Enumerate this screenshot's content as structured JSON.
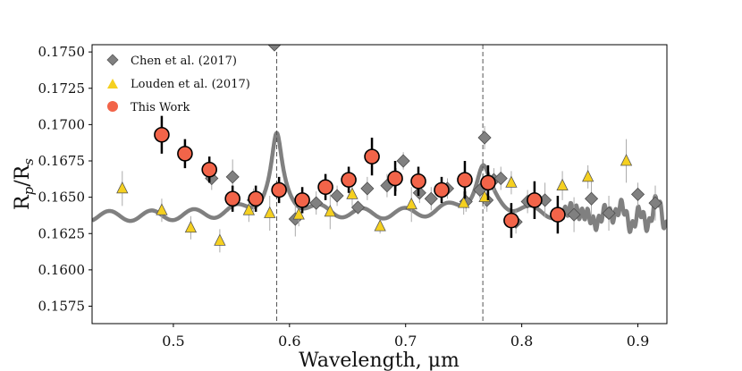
{
  "chart_data": {
    "type": "scatter",
    "xlabel": "Wavelength, μm",
    "ylabel": "Rₚ/Rₛ",
    "ylabel_main": "R",
    "ylabel_sub1": "p",
    "ylabel_mid": "/R",
    "ylabel_sub2": "s",
    "xlim": [
      0.43,
      0.925
    ],
    "ylim": [
      0.1563,
      0.1755
    ],
    "xticks": [
      0.5,
      0.6,
      0.7,
      0.8,
      0.9
    ],
    "xtick_labels": [
      "0.5",
      "0.6",
      "0.7",
      "0.8",
      "0.9"
    ],
    "yticks": [
      0.1575,
      0.16,
      0.1625,
      0.165,
      0.1675,
      0.17,
      0.1725,
      0.175
    ],
    "ytick_labels": [
      "0.1575",
      "0.1600",
      "0.1625",
      "0.1650",
      "0.1675",
      "0.1700",
      "0.1725",
      "0.1750"
    ],
    "vlines": [
      0.589,
      0.7665
    ],
    "legend_position": "top-left",
    "colors": {
      "model": "#808080",
      "chen": "#808080",
      "louden": "#f5d020",
      "this_work": "#f26449"
    },
    "series": [
      {
        "name": "Chen et al. (2017)",
        "marker": "diamond",
        "x": [
          0.533,
          0.551,
          0.569,
          0.587,
          0.605,
          0.623,
          0.641,
          0.659,
          0.667,
          0.684,
          0.692,
          0.698,
          0.712,
          0.722,
          0.736,
          0.752,
          0.764,
          0.768,
          0.77,
          0.776,
          0.782,
          0.795,
          0.805,
          0.82,
          0.845,
          0.86,
          0.875,
          0.9,
          0.915
        ],
        "y": [
          0.1663,
          0.1664,
          0.1648,
          0.1755,
          0.1635,
          0.1646,
          0.1651,
          0.1643,
          0.1656,
          0.1658,
          0.1662,
          0.1675,
          0.1653,
          0.1649,
          0.1656,
          0.1647,
          0.1655,
          0.1691,
          0.1648,
          0.1662,
          0.1663,
          0.1633,
          0.1647,
          0.1648,
          0.1638,
          0.1649,
          0.1639,
          0.1652,
          0.1646
        ],
        "err": [
          0.0008,
          0.0012,
          0.0008,
          0.0002,
          0.0012,
          0.0008,
          0.0007,
          0.0004,
          0.0008,
          0.0008,
          0.0008,
          0.0006,
          0.0007,
          0.0008,
          0.0007,
          0.0007,
          0.0006,
          0.0008,
          0.0008,
          0.0008,
          0.0008,
          0.0008,
          0.0008,
          0.0012,
          0.0012,
          0.0012,
          0.0012,
          0.0008,
          0.0012
        ]
      },
      {
        "name": "Louden et al. (2017)",
        "marker": "triangle",
        "x": [
          0.456,
          0.49,
          0.515,
          0.54,
          0.565,
          0.583,
          0.608,
          0.635,
          0.654,
          0.678,
          0.705,
          0.75,
          0.768,
          0.791,
          0.835,
          0.857,
          0.89
        ],
        "y": [
          0.1656,
          0.1641,
          0.1629,
          0.162,
          0.1641,
          0.1639,
          0.1638,
          0.164,
          0.1652,
          0.163,
          0.1645,
          0.1646,
          0.165,
          0.166,
          0.1658,
          0.1664,
          0.1675
        ],
        "err": [
          0.0012,
          0.0008,
          0.0008,
          0.0008,
          0.0008,
          0.0012,
          0.0008,
          0.0012,
          0.0008,
          0.0005,
          0.0012,
          0.0008,
          0.0008,
          0.0008,
          0.001,
          0.0008,
          0.0015
        ]
      },
      {
        "name": "This Work",
        "marker": "circle",
        "x": [
          0.49,
          0.51,
          0.531,
          0.551,
          0.571,
          0.591,
          0.611,
          0.631,
          0.651,
          0.671,
          0.691,
          0.711,
          0.731,
          0.751,
          0.771,
          0.791,
          0.811,
          0.831
        ],
        "y": [
          0.1693,
          0.168,
          0.1669,
          0.1649,
          0.1649,
          0.1655,
          0.1648,
          0.1657,
          0.1662,
          0.1678,
          0.1663,
          0.1661,
          0.1655,
          0.1662,
          0.166,
          0.1634,
          0.1648,
          0.1638
        ],
        "err": [
          0.0013,
          0.001,
          0.0009,
          0.0009,
          0.0009,
          0.0009,
          0.0009,
          0.0009,
          0.0009,
          0.0013,
          0.0012,
          0.001,
          0.0009,
          0.0013,
          0.0012,
          0.0012,
          0.0013,
          0.0013
        ]
      }
    ]
  }
}
